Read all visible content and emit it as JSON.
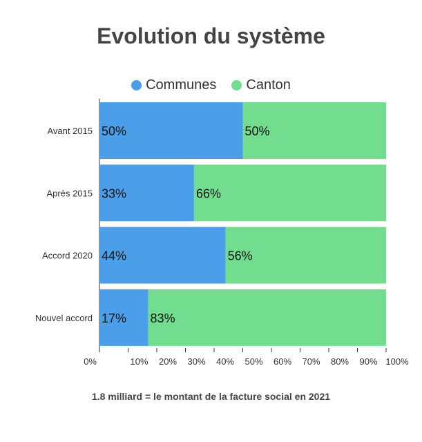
{
  "chart_data": {
    "type": "bar",
    "orientation": "horizontal",
    "stacked": true,
    "title": "Evolution du système",
    "categories": [
      "Avant 2015",
      "Après 2015",
      "Accord 2020",
      "Nouvel accord"
    ],
    "series": [
      {
        "name": "Communes",
        "color": "#4a9fe8",
        "values": [
          50,
          33,
          44,
          17
        ],
        "labels": [
          "50%",
          "33%",
          "44%",
          "17%"
        ]
      },
      {
        "name": "Canton",
        "color": "#73dd8f",
        "values": [
          50,
          66,
          56,
          83
        ],
        "labels": [
          "50%",
          "66%",
          "56%",
          "83%"
        ]
      }
    ],
    "xlim": [
      0,
      100
    ],
    "x_ticks": [
      "0%",
      "10%",
      "20%",
      "30%",
      "40%",
      "50%",
      "60%",
      "70%",
      "80%",
      "90%",
      "100%"
    ],
    "legend_position": "top",
    "caption": "1.8 milliard = le montant de la facture social en 2021"
  }
}
